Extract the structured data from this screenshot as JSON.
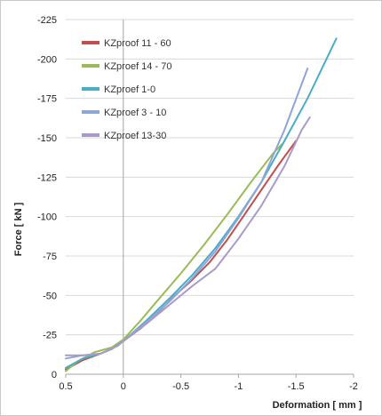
{
  "chart_data": {
    "type": "line",
    "xlabel": "Deformation [ mm ]",
    "ylabel": "Force [ kN ]",
    "xlim": [
      0.5,
      -2
    ],
    "ylim": [
      0,
      -225
    ],
    "x_ticks": [
      "0.5",
      "0",
      "-0.5",
      "-1",
      "-1.5",
      "-2"
    ],
    "y_ticks": [
      "-225",
      "-200",
      "-175",
      "-150",
      "-125",
      "-100",
      "-75",
      "-50",
      "-25",
      "0"
    ],
    "x_tick_values": [
      0.5,
      0,
      -0.5,
      -1,
      -1.5,
      -2
    ],
    "y_tick_values": [
      -225,
      -200,
      -175,
      -150,
      -125,
      -100,
      -75,
      -50,
      -25,
      0
    ],
    "grid": "horizontal",
    "legend_position": "top-left",
    "series": [
      {
        "name": "KZproof 11 - 60",
        "color": "#c0504d",
        "x": [
          0.5,
          0.35,
          0.2,
          0.1,
          0.0,
          -0.15,
          -0.3,
          -0.45,
          -0.6,
          -0.75,
          -0.9,
          -1.05,
          -1.2,
          -1.35,
          -1.5
        ],
        "y": [
          -3,
          -9,
          -13,
          -16,
          -21,
          -29,
          -39,
          -50,
          -60,
          -71,
          -85,
          -101,
          -117,
          -133,
          -148
        ]
      },
      {
        "name": "KZproef 14 - 70",
        "color": "#9bbb59",
        "x": [
          0.5,
          0.4,
          0.25,
          0.1,
          0.0,
          -0.15,
          -0.3,
          -0.5,
          -0.7,
          -0.9,
          -1.1,
          -1.3,
          -1.38
        ],
        "y": [
          -2,
          -8,
          -14,
          -17,
          -22,
          -34,
          -47,
          -64,
          -82,
          -101,
          -121,
          -140,
          -146
        ]
      },
      {
        "name": "KZproef 1-0",
        "color": "#4bacc6",
        "x": [
          0.5,
          0.35,
          0.2,
          0.1,
          0.0,
          -0.2,
          -0.4,
          -0.6,
          -0.8,
          -1.0,
          -1.2,
          -1.4,
          -1.6,
          -1.85
        ],
        "y": [
          -4,
          -10,
          -13,
          -16,
          -21,
          -34,
          -48,
          -63,
          -80,
          -100,
          -122,
          -148,
          -175,
          -213
        ]
      },
      {
        "name": "KZproef 3 - 10",
        "color": "#8fa5d8",
        "x": [
          0.5,
          0.35,
          0.2,
          0.05,
          0.0,
          -0.2,
          -0.4,
          -0.6,
          -0.8,
          -1.0,
          -1.2,
          -1.4,
          -1.6
        ],
        "y": [
          -10,
          -12,
          -13,
          -18,
          -21,
          -33,
          -46,
          -61,
          -78,
          -99,
          -122,
          -155,
          -194
        ]
      },
      {
        "name": "KZproef 13-30",
        "color": "#a99bc9",
        "x": [
          0.5,
          0.35,
          0.2,
          0.05,
          0.0,
          -0.2,
          -0.4,
          -0.6,
          -0.8,
          -1.0,
          -1.2,
          -1.4,
          -1.55,
          -1.62
        ],
        "y": [
          -12,
          -12,
          -13,
          -18,
          -21,
          -32,
          -44,
          -56,
          -67,
          -86,
          -107,
          -132,
          -155,
          -163
        ]
      }
    ]
  }
}
